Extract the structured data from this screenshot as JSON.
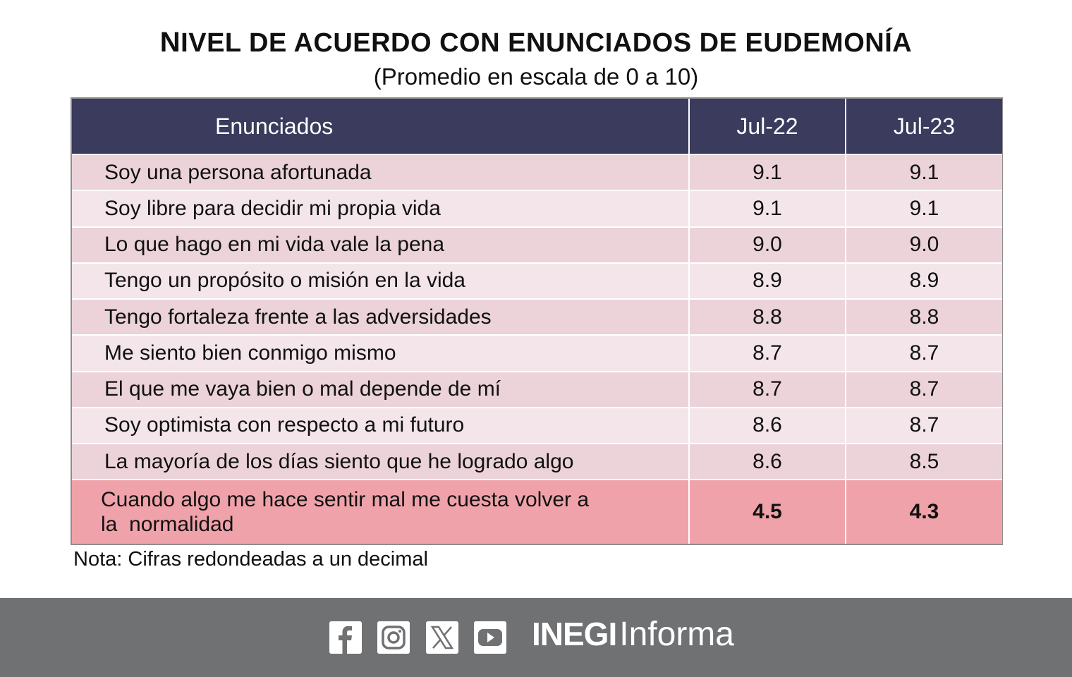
{
  "header": {
    "title_first": "N",
    "title_rest": "IVEL DE ACUERDO CON ENUNCIADOS DE EUDEMONÍA",
    "subtitle": "(Promedio en escala de 0 a 10)"
  },
  "table": {
    "columns": [
      "Enunciados",
      "Jul-22",
      "Jul-23"
    ],
    "rows": [
      {
        "statement": "Soy una persona afortunada",
        "jul22": "9.1",
        "jul23": "9.1"
      },
      {
        "statement": "Soy libre para decidir mi propia vida",
        "jul22": "9.1",
        "jul23": "9.1"
      },
      {
        "statement": "Lo que hago en mi vida vale la pena",
        "jul22": "9.0",
        "jul23": "9.0"
      },
      {
        "statement": "Tengo un propósito o misión en la vida",
        "jul22": "8.9",
        "jul23": "8.9"
      },
      {
        "statement": "Tengo fortaleza frente a las adversidades",
        "jul22": "8.8",
        "jul23": "8.8"
      },
      {
        "statement": "Me siento bien conmigo mismo",
        "jul22": "8.7",
        "jul23": "8.7"
      },
      {
        "statement": "El que me vaya bien o mal depende de mí",
        "jul22": "8.7",
        "jul23": "8.7"
      },
      {
        "statement": "Soy optimista con respecto a mi futuro",
        "jul22": "8.6",
        "jul23": "8.7"
      },
      {
        "statement": "La mayoría de los días siento que he logrado algo",
        "jul22": "8.6",
        "jul23": "8.5"
      }
    ],
    "highlight_row": {
      "statement_line1": "Cuando algo me hace sentir mal me cuesta volver a",
      "statement_line2": "la  normalidad",
      "jul22": "4.5",
      "jul23": "4.3"
    }
  },
  "note": "Nota: Cifras redondeadas a un decimal",
  "footer": {
    "social_icons": [
      "facebook-icon",
      "instagram-icon",
      "x-icon",
      "youtube-icon"
    ],
    "brand_bold": "INEGI",
    "brand_regular": "Informa"
  },
  "colors": {
    "header_bg": "#3b3b5e",
    "row_dark": "#ebd3d9",
    "row_light": "#f3e5e9",
    "highlight": "#efa2aa",
    "footer_bg": "#707173"
  }
}
